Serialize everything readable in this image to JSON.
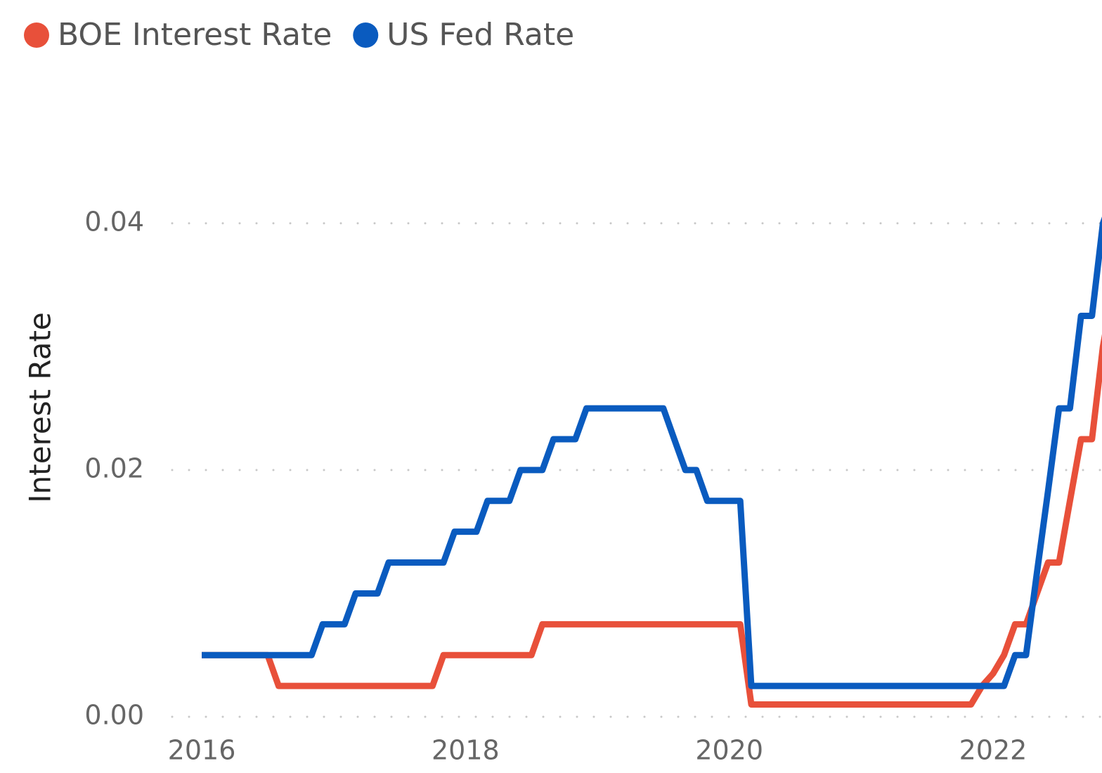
{
  "chart_data": {
    "type": "line",
    "y_label": "Interest Rate",
    "x": [
      2016,
      2016.083,
      2016.167,
      2016.25,
      2016.333,
      2016.417,
      2016.5,
      2016.583,
      2016.667,
      2016.75,
      2016.833,
      2016.917,
      2017,
      2017.083,
      2017.167,
      2017.25,
      2017.333,
      2017.417,
      2017.5,
      2017.583,
      2017.667,
      2017.75,
      2017.833,
      2017.917,
      2018,
      2018.083,
      2018.167,
      2018.25,
      2018.333,
      2018.417,
      2018.5,
      2018.583,
      2018.667,
      2018.75,
      2018.833,
      2018.917,
      2019,
      2019.083,
      2019.167,
      2019.25,
      2019.333,
      2019.417,
      2019.5,
      2019.583,
      2019.667,
      2019.75,
      2019.833,
      2019.917,
      2020,
      2020.083,
      2020.167,
      2020.25,
      2020.333,
      2020.417,
      2020.5,
      2020.583,
      2020.667,
      2020.75,
      2020.833,
      2020.917,
      2021,
      2021.083,
      2021.167,
      2021.25,
      2021.333,
      2021.417,
      2021.5,
      2021.583,
      2021.667,
      2021.75,
      2021.833,
      2021.917,
      2022,
      2022.083,
      2022.167,
      2022.25,
      2022.333,
      2022.417,
      2022.5,
      2022.583,
      2022.667,
      2022.75,
      2022.833,
      2022.917
    ],
    "series": [
      {
        "name": "BOE Interest Rate",
        "color": "#e8503a",
        "values": [
          0.005,
          0.005,
          0.005,
          0.005,
          0.005,
          0.005,
          0.005,
          0.0025,
          0.0025,
          0.0025,
          0.0025,
          0.0025,
          0.0025,
          0.0025,
          0.0025,
          0.0025,
          0.0025,
          0.0025,
          0.0025,
          0.0025,
          0.0025,
          0.0025,
          0.005,
          0.005,
          0.005,
          0.005,
          0.005,
          0.005,
          0.005,
          0.005,
          0.005,
          0.0075,
          0.0075,
          0.0075,
          0.0075,
          0.0075,
          0.0075,
          0.0075,
          0.0075,
          0.0075,
          0.0075,
          0.0075,
          0.0075,
          0.0075,
          0.0075,
          0.0075,
          0.0075,
          0.0075,
          0.0075,
          0.0075,
          0.001,
          0.001,
          0.001,
          0.001,
          0.001,
          0.001,
          0.001,
          0.001,
          0.001,
          0.001,
          0.001,
          0.001,
          0.001,
          0.001,
          0.001,
          0.001,
          0.001,
          0.001,
          0.001,
          0.001,
          0.001,
          0.0025,
          0.0035,
          0.005,
          0.0075,
          0.0075,
          0.01,
          0.0125,
          0.0125,
          0.0175,
          0.0225,
          0.0225,
          0.03,
          0.035
        ]
      },
      {
        "name": "US Fed Rate",
        "color": "#0a5bbf",
        "values": [
          0.005,
          0.005,
          0.005,
          0.005,
          0.005,
          0.005,
          0.005,
          0.005,
          0.005,
          0.005,
          0.005,
          0.0075,
          0.0075,
          0.0075,
          0.01,
          0.01,
          0.01,
          0.0125,
          0.0125,
          0.0125,
          0.0125,
          0.0125,
          0.0125,
          0.015,
          0.015,
          0.015,
          0.0175,
          0.0175,
          0.0175,
          0.02,
          0.02,
          0.02,
          0.0225,
          0.0225,
          0.0225,
          0.025,
          0.025,
          0.025,
          0.025,
          0.025,
          0.025,
          0.025,
          0.025,
          0.0225,
          0.02,
          0.02,
          0.0175,
          0.0175,
          0.0175,
          0.0175,
          0.0025,
          0.0025,
          0.0025,
          0.0025,
          0.0025,
          0.0025,
          0.0025,
          0.0025,
          0.0025,
          0.0025,
          0.0025,
          0.0025,
          0.0025,
          0.0025,
          0.0025,
          0.0025,
          0.0025,
          0.0025,
          0.0025,
          0.0025,
          0.0025,
          0.0025,
          0.0025,
          0.0025,
          0.005,
          0.005,
          0.0117,
          0.0183,
          0.025,
          0.025,
          0.0325,
          0.0325,
          0.04,
          0.0425
        ]
      }
    ],
    "xlim": [
      2015.776,
      2022.826
    ],
    "xticks": [
      2016,
      2018,
      2020,
      2022
    ],
    "ylim": [
      0,
      0.045
    ],
    "yticks": [
      {
        "value": 0,
        "label": "0.00"
      },
      0.02,
      0.04
    ],
    "grid": true,
    "legend": "top-left"
  }
}
